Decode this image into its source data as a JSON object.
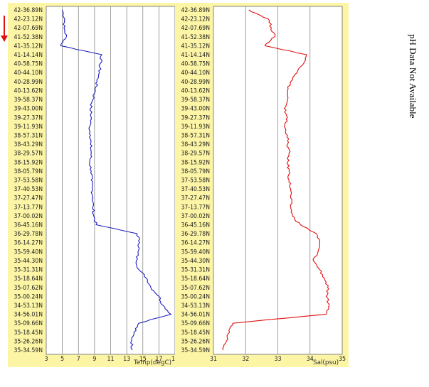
{
  "side_note": "pH Data Not Available",
  "chart_data": [
    {
      "type": "line",
      "xlabel": "Temp(degC)",
      "ylabel": "",
      "xlim": [
        3,
        19
      ],
      "xticks": [
        3,
        5,
        7,
        9,
        11,
        13,
        15,
        17,
        19
      ],
      "color": "#1f1fbf",
      "series": [
        {
          "y": [
            "42-36.89N",
            "42-23.12N",
            "42-07.69N",
            "41-52.38N",
            "41-35.12N",
            "41-14.14N",
            "40-58.75N",
            "40-44.10N",
            "40-28.99N",
            "40-13.62N",
            "39-58.37N",
            "39-43.00N",
            "39-27.37N",
            "39-11.93N",
            "38-57.31N",
            "38-43.29N",
            "38-29.57N",
            "38-15.92N",
            "38-05.79N",
            "37-53.58N",
            "37-40.53N",
            "37-27.47N",
            "37-13.77N",
            "37-00.02N",
            "36-45.16N",
            "36-29.78N",
            "36-14.27N",
            "35-59.40N",
            "35-44.30N",
            "35-31.31N",
            "35-18.64N",
            "35-07.62N",
            "35-00.24N",
            "34-53.13N",
            "34-56.01N",
            "35-09.66N",
            "35-18.45N",
            "35-26.26N",
            "35-34.59N"
          ],
          "x": [
            5.0,
            5.3,
            5.2,
            5.5,
            4.8,
            9.9,
            9.7,
            9.6,
            9.3,
            9.1,
            8.8,
            8.5,
            8.6,
            8.4,
            8.5,
            8.5,
            8.6,
            8.4,
            8.6,
            8.6,
            8.7,
            8.8,
            8.8,
            8.9,
            9.2,
            14.3,
            14.6,
            14.4,
            14.2,
            14.5,
            15.5,
            16.0,
            17.0,
            17.5,
            18.5,
            14.5,
            13.9,
            13.6,
            13.7
          ]
        }
      ]
    },
    {
      "type": "line",
      "xlabel": "Sal(psu)",
      "ylabel": "",
      "xlim": [
        31,
        35
      ],
      "xticks": [
        31,
        32,
        33,
        34,
        35
      ],
      "color": "#e01010",
      "series": [
        {
          "y": [
            "42-36.89N",
            "42-23.12N",
            "42-07.69N",
            "41-52.38N",
            "41-35.12N",
            "41-14.14N",
            "40-58.75N",
            "40-44.10N",
            "40-28.99N",
            "40-13.62N",
            "39-58.37N",
            "39-43.00N",
            "39-27.37N",
            "39-11.93N",
            "38-57.31N",
            "38-43.29N",
            "38-29.57N",
            "38-15.92N",
            "38-05.79N",
            "37-53.58N",
            "37-40.53N",
            "37-27.47N",
            "37-13.77N",
            "37-00.02N",
            "36-45.16N",
            "36-29.78N",
            "36-14.27N",
            "35-59.40N",
            "35-44.30N",
            "35-31.31N",
            "35-18.64N",
            "35-07.62N",
            "35-00.24N",
            "34-53.13N",
            "34-56.01N",
            "35-09.66N",
            "35-18.45N",
            "35-26.26N",
            "35-34.59N"
          ],
          "x": [
            32.1,
            32.7,
            32.8,
            32.9,
            32.6,
            33.9,
            33.8,
            33.6,
            33.4,
            33.3,
            33.3,
            33.2,
            33.3,
            33.2,
            33.3,
            33.3,
            33.35,
            33.3,
            33.35,
            33.35,
            33.4,
            33.4,
            33.4,
            33.45,
            33.7,
            34.2,
            34.3,
            34.25,
            34.1,
            34.3,
            34.45,
            34.55,
            34.5,
            34.6,
            34.5,
            31.6,
            31.5,
            31.4,
            31.3
          ]
        }
      ]
    }
  ]
}
